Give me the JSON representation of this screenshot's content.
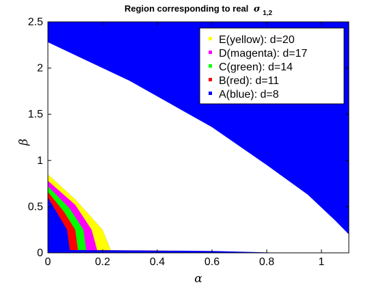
{
  "chart_data": {
    "type": "area",
    "title": "Region corresponding to real",
    "title_symbol": "σ",
    "title_subscript": "1,2",
    "xlabel": "α",
    "ylabel": "β",
    "xlim": [
      0,
      1.1
    ],
    "ylim": [
      0,
      2.5
    ],
    "x_ticks": [
      0,
      0.2,
      0.4,
      0.6,
      0.8,
      1
    ],
    "x_tick_labels": [
      "0",
      "0.2",
      "0.4",
      "0.6",
      "0.8",
      "1"
    ],
    "y_ticks": [
      0,
      0.5,
      1,
      1.5,
      2,
      2.5
    ],
    "y_tick_labels": [
      "0",
      "0.5",
      "1",
      "1.5",
      "2",
      "2.5"
    ],
    "grid": false,
    "legend_position": "top-right",
    "background_region": "A",
    "series": [
      {
        "name": "E(yellow): d=20",
        "color": "#ffff00",
        "d": 20,
        "upper_boundary": [
          [
            0,
            2.28
          ],
          [
            0.3,
            1.86
          ],
          [
            0.6,
            1.36
          ],
          [
            0.8,
            0.95
          ],
          [
            0.95,
            0.63
          ],
          [
            1.05,
            0.35
          ],
          [
            1.1,
            0.2
          ]
        ],
        "lower_boundary": [
          [
            0,
            0.85
          ],
          [
            0.1,
            0.58
          ],
          [
            0.2,
            0.25
          ],
          [
            0.23,
            0.03
          ],
          [
            0.6,
            0.02
          ],
          [
            0.86,
            0.0
          ]
        ],
        "legend_color_patch": true
      },
      {
        "name": "D(magenta): d=17",
        "color": "#ff00ff",
        "d": 17,
        "upper_boundary": [
          [
            0,
            2.24
          ],
          [
            0.3,
            1.82
          ],
          [
            0.6,
            1.32
          ],
          [
            0.8,
            0.91
          ],
          [
            0.95,
            0.59
          ],
          [
            1.05,
            0.32
          ],
          [
            1.1,
            0.18
          ]
        ],
        "lower_boundary": [
          [
            0,
            0.78
          ],
          [
            0.1,
            0.52
          ],
          [
            0.16,
            0.25
          ],
          [
            0.18,
            0.03
          ],
          [
            0.6,
            0.02
          ],
          [
            0.93,
            0.0
          ]
        ],
        "legend_color_patch": true
      },
      {
        "name": "C(green): d=14",
        "color": "#00ff00",
        "d": 14,
        "upper_boundary": [
          [
            0,
            2.2
          ],
          [
            0.3,
            1.78
          ],
          [
            0.6,
            1.28
          ],
          [
            0.8,
            0.87
          ],
          [
            0.95,
            0.55
          ],
          [
            1.05,
            0.29
          ],
          [
            1.1,
            0.16
          ]
        ],
        "lower_boundary": [
          [
            0,
            0.72
          ],
          [
            0.08,
            0.48
          ],
          [
            0.13,
            0.25
          ],
          [
            0.14,
            0.03
          ],
          [
            0.6,
            0.02
          ],
          [
            0.98,
            0.0
          ]
        ],
        "legend_color_patch": true
      },
      {
        "name": "B(red): d=11",
        "color": "#ff0000",
        "d": 11,
        "upper_boundary": [
          [
            0,
            2.16
          ],
          [
            0.3,
            1.74
          ],
          [
            0.6,
            1.24
          ],
          [
            0.8,
            0.83
          ],
          [
            0.95,
            0.51
          ],
          [
            1.05,
            0.26
          ],
          [
            1.1,
            0.14
          ]
        ],
        "lower_boundary": [
          [
            0,
            0.66
          ],
          [
            0.06,
            0.44
          ],
          [
            0.1,
            0.25
          ],
          [
            0.11,
            0.03
          ],
          [
            0.6,
            0.02
          ],
          [
            1.04,
            0.0
          ]
        ],
        "legend_color_patch": true
      },
      {
        "name": "A(blue): d=8",
        "color": "#0000ff",
        "d": 8,
        "upper_boundary": [
          [
            0,
            2.1
          ],
          [
            0.3,
            1.68
          ],
          [
            0.6,
            1.18
          ],
          [
            0.8,
            0.77
          ],
          [
            0.95,
            0.45
          ],
          [
            1.05,
            0.22
          ],
          [
            1.1,
            0.1
          ]
        ],
        "lower_boundary": [
          [
            0,
            0.6
          ],
          [
            0.04,
            0.4
          ],
          [
            0.07,
            0.25
          ],
          [
            0.08,
            0.03
          ],
          [
            0.6,
            0.02
          ],
          [
            1.1,
            0.0
          ]
        ],
        "legend_color_patch": true
      }
    ]
  }
}
